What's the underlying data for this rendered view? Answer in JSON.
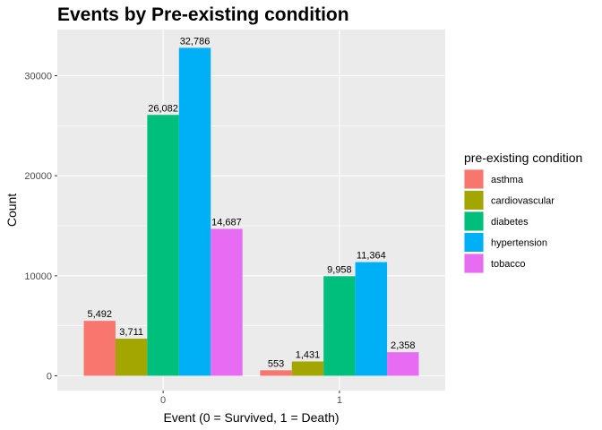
{
  "chart_data": {
    "type": "bar",
    "title": "Events by Pre-existing condition",
    "xlabel": "Event (0 = Survived, 1 = Death)",
    "ylabel": "Count",
    "categories": [
      "0",
      "1"
    ],
    "ylim": [
      0,
      34400
    ],
    "yticks": [
      0,
      10000,
      20000,
      30000
    ],
    "grid": true,
    "legend_position": "right",
    "legend_title": "pre-existing condition",
    "series": [
      {
        "name": "asthma",
        "color": "#F8766D",
        "values": [
          5492,
          553
        ],
        "labels": [
          "5,492",
          "553"
        ]
      },
      {
        "name": "cardiovascular",
        "color": "#A3A500",
        "values": [
          3711,
          1431
        ],
        "labels": [
          "3,711",
          "1,431"
        ]
      },
      {
        "name": "diabetes",
        "color": "#00BF7D",
        "values": [
          26082,
          9958
        ],
        "labels": [
          "26,082",
          "9,958"
        ]
      },
      {
        "name": "hypertension",
        "color": "#00B0F6",
        "values": [
          32786,
          11364
        ],
        "labels": [
          "32,786",
          "11,364"
        ]
      },
      {
        "name": "tobacco",
        "color": "#E76BF3",
        "values": [
          14687,
          2358
        ],
        "labels": [
          "14,687",
          "2,358"
        ]
      }
    ]
  }
}
